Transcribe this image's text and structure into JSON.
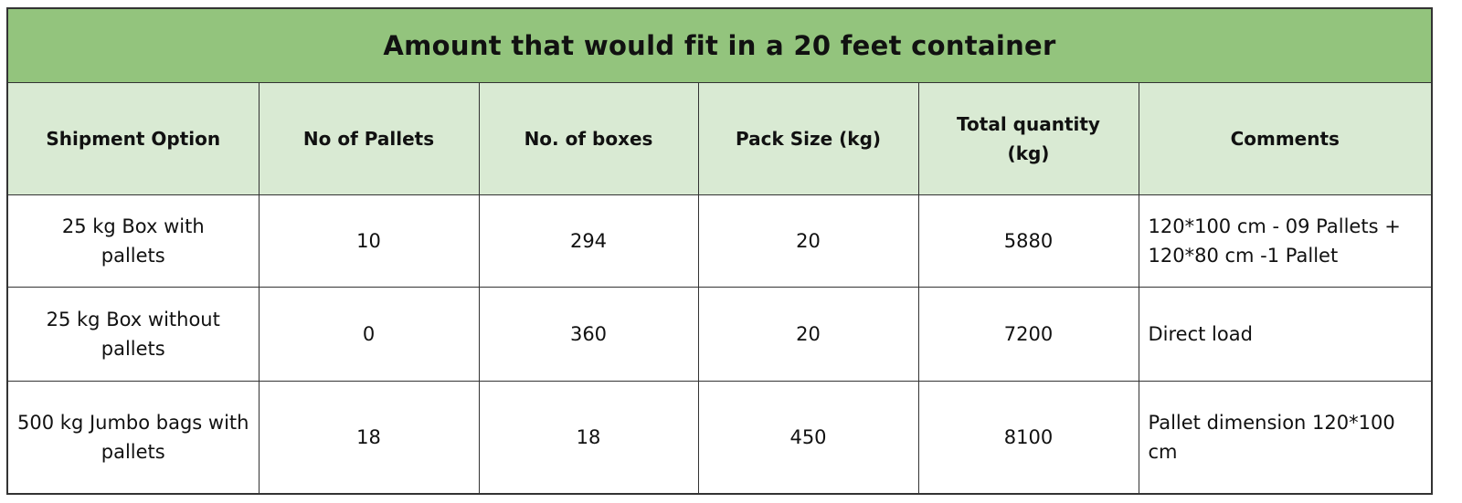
{
  "title": "Amount that would fit in a 20 feet container",
  "colors": {
    "title_bg": "#93c47d",
    "header_bg": "#d9ead3"
  },
  "columns": [
    "Shipment Option",
    "No of Pallets",
    "No. of boxes",
    "Pack Size (kg)",
    "Total quantity (kg)",
    "Comments"
  ],
  "rows": [
    [
      "25 kg Box with pallets",
      "10",
      "294",
      "20",
      "5880",
      "120*100 cm - 09 Pallets + 120*80 cm -1 Pallet"
    ],
    [
      "25 kg Box without pallets",
      "0",
      "360",
      "20",
      "7200",
      "Direct load"
    ],
    [
      "500 kg Jumbo bags with pallets",
      "18",
      "18",
      "450",
      "8100",
      "Pallet dimension 120*100 cm"
    ]
  ]
}
